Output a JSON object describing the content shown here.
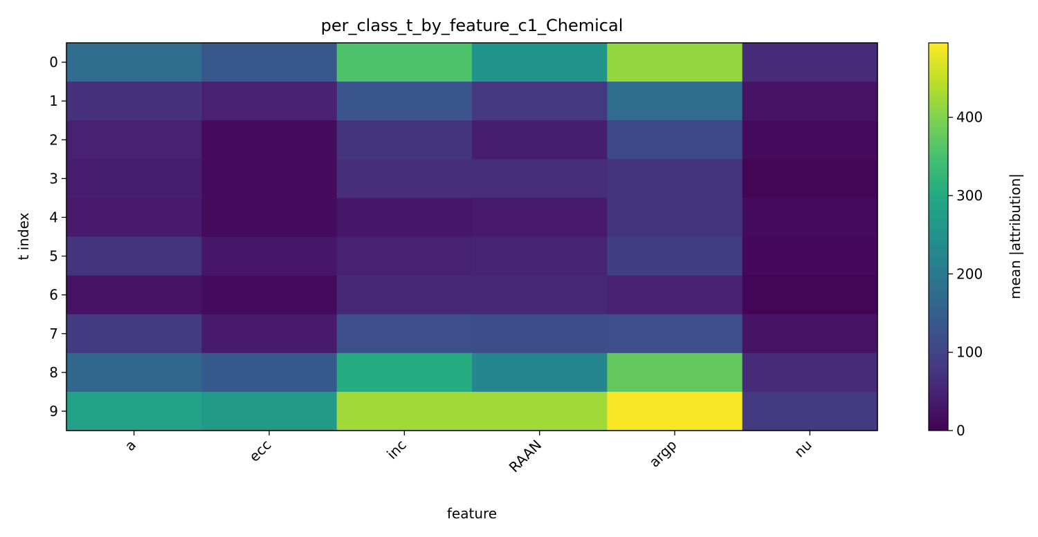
{
  "chart_data": {
    "type": "heatmap",
    "title": "per_class_t_by_feature_c1_Chemical",
    "xlabel": "feature",
    "ylabel": "t index",
    "x_categories": [
      "a",
      "ecc",
      "inc",
      "RAAN",
      "argp",
      "nu"
    ],
    "y_categories": [
      "0",
      "1",
      "2",
      "3",
      "4",
      "5",
      "6",
      "7",
      "8",
      "9"
    ],
    "values": [
      [
        175,
        135,
        355,
        255,
        415,
        60
      ],
      [
        70,
        45,
        130,
        80,
        175,
        25
      ],
      [
        45,
        15,
        75,
        40,
        110,
        15
      ],
      [
        40,
        15,
        65,
        65,
        75,
        5
      ],
      [
        35,
        15,
        30,
        35,
        75,
        15
      ],
      [
        75,
        30,
        45,
        50,
        90,
        10
      ],
      [
        25,
        15,
        55,
        55,
        45,
        5
      ],
      [
        85,
        35,
        120,
        115,
        120,
        25
      ],
      [
        165,
        140,
        305,
        225,
        375,
        60
      ],
      [
        285,
        270,
        425,
        425,
        490,
        85
      ]
    ],
    "colorbar": {
      "label": "mean |attribution|",
      "range": [
        0,
        495
      ],
      "ticks": [
        0,
        100,
        200,
        300,
        400
      ],
      "colormap": "viridis"
    },
    "grid": false
  }
}
